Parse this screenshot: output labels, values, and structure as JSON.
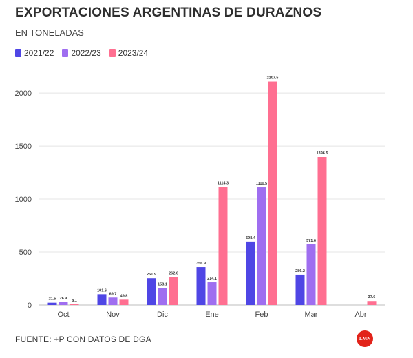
{
  "title": "EXPORTACIONES ARGENTINAS DE DURAZNOS",
  "subtitle": "EN TONELADAS",
  "footer": "FUENTE: +P CON DATOS DE DGA",
  "logo_text": "LMN",
  "colors": {
    "s2122": "#4f46e5",
    "s2223": "#9f6ef0",
    "s2324": "#ff6f91",
    "grid": "#e4e4e4",
    "axis": "#bdbdbd"
  },
  "chart_data": {
    "type": "bar",
    "categories": [
      "Oct",
      "Nov",
      "Dic",
      "Ene",
      "Feb",
      "Mar",
      "Abr"
    ],
    "series": [
      {
        "name": "2021/22",
        "values": [
          21.5,
          101.6,
          251.9,
          356.9,
          598.4,
          286.2,
          null
        ]
      },
      {
        "name": "2022/23",
        "values": [
          26.9,
          69.7,
          158.1,
          214.1,
          1110.5,
          571.6,
          null
        ]
      },
      {
        "name": "2023/24",
        "values": [
          8.1,
          49.8,
          262.6,
          1114.3,
          2107.5,
          1396.5,
          37.6
        ]
      }
    ],
    "data_labels": [
      [
        "21.5",
        "101.6",
        "251.9",
        "356.9",
        "598.4",
        "286.2",
        null
      ],
      [
        "26.9",
        "69.7",
        "158.1",
        "214.1",
        "1110.5",
        "571.6",
        null
      ],
      [
        "8.1",
        "49.8",
        "262.6",
        "1114.3",
        "2107.5",
        "1396.5",
        "37.6"
      ]
    ],
    "yticks": [
      0,
      500,
      1000,
      1500,
      2000
    ],
    "ylim": [
      0,
      2150
    ],
    "grid": true,
    "legend": "top-left"
  }
}
